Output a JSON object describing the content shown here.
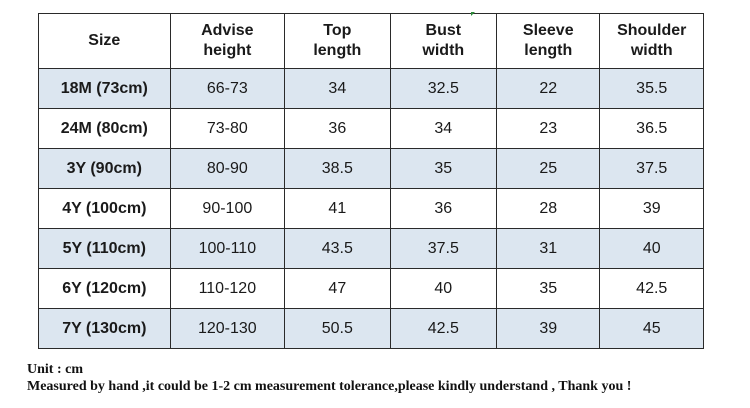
{
  "table": {
    "headers": [
      {
        "line1": "Size",
        "line2": ""
      },
      {
        "line1": "Advise",
        "line2": "height"
      },
      {
        "line1": "Top",
        "line2": "length"
      },
      {
        "line1": "Bust",
        "line2": "width"
      },
      {
        "line1": "Sleeve",
        "line2": "length"
      },
      {
        "line1": "Shoulder",
        "line2": "width"
      }
    ],
    "rows": [
      [
        "18M (73cm)",
        "66-73",
        "34",
        "32.5",
        "22",
        "35.5"
      ],
      [
        "24M (80cm)",
        "73-80",
        "36",
        "34",
        "23",
        "36.5"
      ],
      [
        "3Y (90cm)",
        "80-90",
        "38.5",
        "35",
        "25",
        "37.5"
      ],
      [
        "4Y (100cm)",
        "90-100",
        "41",
        "36",
        "28",
        "39"
      ],
      [
        "5Y (110cm)",
        "100-110",
        "43.5",
        "37.5",
        "31",
        "40"
      ],
      [
        "6Y (120cm)",
        "110-120",
        "47",
        "40",
        "35",
        "42.5"
      ],
      [
        "7Y (130cm)",
        "120-130",
        "50.5",
        "42.5",
        "39",
        "45"
      ]
    ]
  },
  "notes": {
    "unit": "Unit : cm",
    "tolerance": "Measured by hand ,it could be 1-2 cm measurement tolerance,please kindly understand , Thank you !"
  },
  "colors": {
    "shaded_row": "#dce6f0",
    "border": "#2a2a2a"
  }
}
